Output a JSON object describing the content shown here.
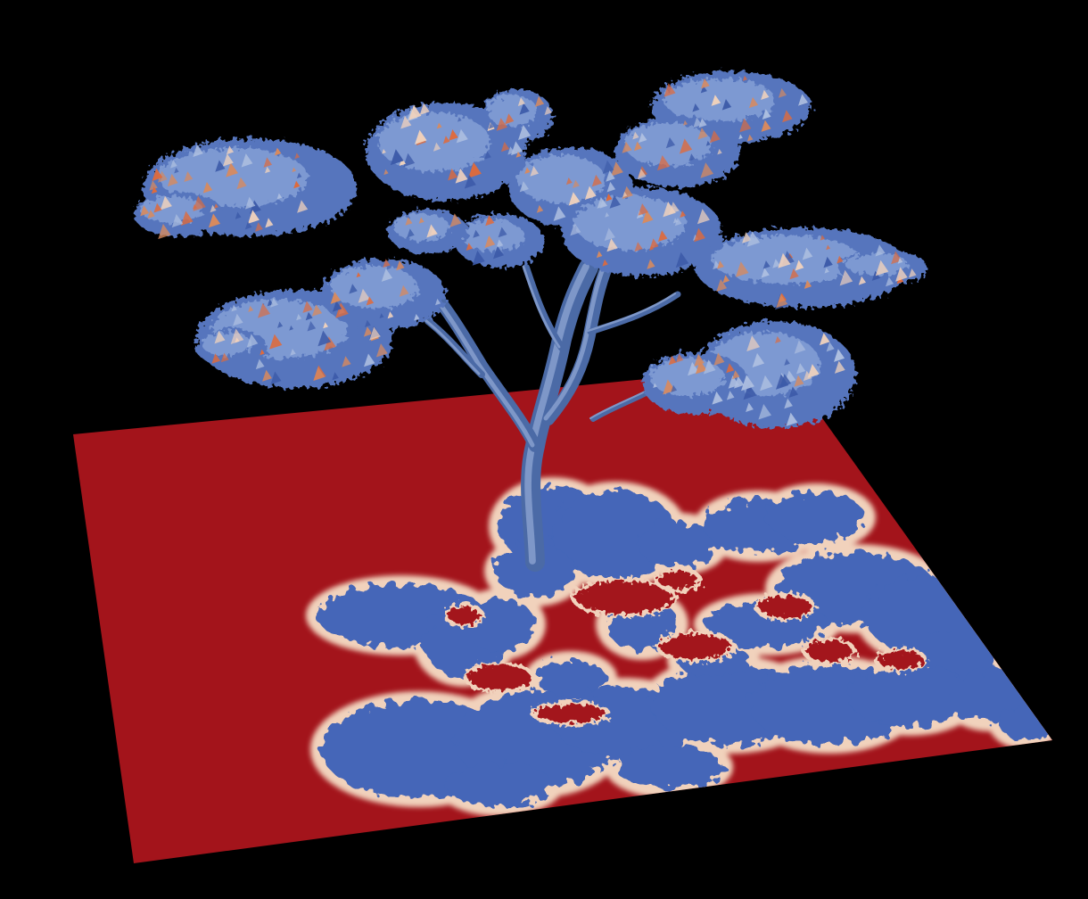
{
  "scene": {
    "subject": "tree-shadow-render",
    "background_color": "#000000",
    "colormap": {
      "high": "#a3141b",
      "mid": "#f1d2bc",
      "low": "#4466b8",
      "highlight": "#e06a3a",
      "pale": "#aebfe0"
    }
  }
}
